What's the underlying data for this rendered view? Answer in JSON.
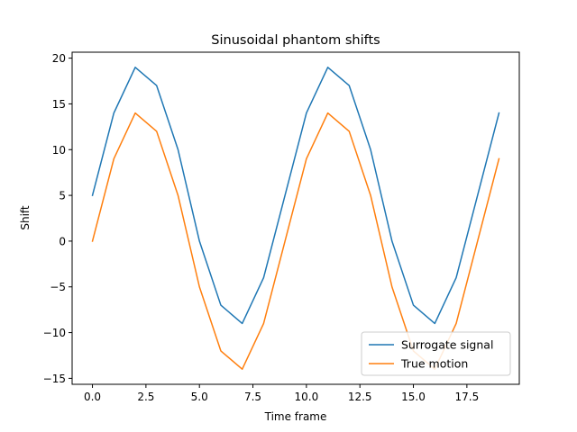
{
  "chart_data": {
    "type": "line",
    "title": "Sinusoidal phantom shifts",
    "xlabel": "Time frame",
    "ylabel": "Shift",
    "xlim": [
      -0.95,
      19.95
    ],
    "ylim": [
      -15.65,
      20.65
    ],
    "x_ticks": [
      0.0,
      2.5,
      5.0,
      7.5,
      10.0,
      12.5,
      15.0,
      17.5
    ],
    "x_tick_labels": [
      "0.0",
      "2.5",
      "5.0",
      "7.5",
      "10.0",
      "12.5",
      "15.0",
      "17.5"
    ],
    "y_ticks": [
      -15,
      -10,
      -5,
      0,
      5,
      10,
      15,
      20
    ],
    "y_tick_labels": [
      "−15",
      "−10",
      "−5",
      "0",
      "5",
      "10",
      "15",
      "20"
    ],
    "grid": false,
    "legend_position": "lower-right",
    "x": [
      0,
      1,
      2,
      3,
      4,
      5,
      6,
      7,
      8,
      9,
      10,
      11,
      12,
      13,
      14,
      15,
      16,
      17,
      18,
      19
    ],
    "series": [
      {
        "name": "Surrogate signal",
        "color": "#1f77b4",
        "values": [
          5,
          14,
          19,
          17,
          10,
          0,
          -7,
          -9,
          -4,
          5,
          14,
          19,
          17,
          10,
          0,
          -7,
          -9,
          -4,
          5,
          14
        ]
      },
      {
        "name": "True motion",
        "color": "#ff7f0e",
        "values": [
          0,
          9,
          14,
          12,
          5,
          -5,
          -12,
          -14,
          -9,
          0,
          9,
          14,
          12,
          5,
          -5,
          -12,
          -14,
          -9,
          0,
          9
        ]
      }
    ]
  }
}
